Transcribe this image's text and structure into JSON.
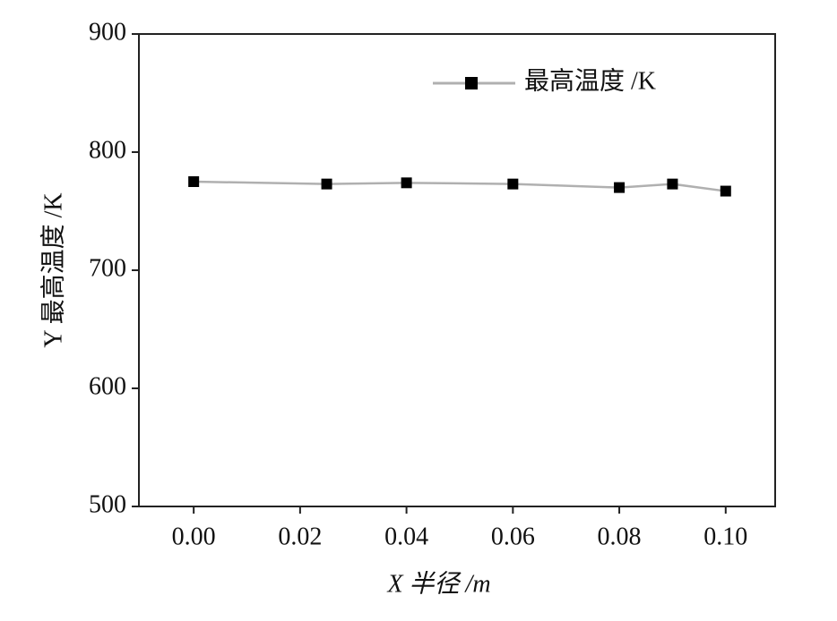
{
  "chart_data": {
    "type": "line",
    "x_label": "X 半径 /m",
    "y_label": "Y 最高温度 /K",
    "x": [
      0,
      0.025,
      0.04,
      0.06,
      0.08,
      0.09,
      0.1
    ],
    "series": [
      {
        "name": "最高温度 /K",
        "color": "#b0b0b0",
        "marker_color": "#000000",
        "values": [
          775,
          773,
          774,
          773,
          770,
          773,
          767
        ]
      }
    ],
    "xlim": [
      -0.0103,
      0.1093
    ],
    "xticks": [
      {
        "value": 0,
        "label": "0.00"
      },
      {
        "value": 0.02,
        "label": "0.02"
      },
      {
        "value": 0.04,
        "label": "0.04"
      },
      {
        "value": 0.06,
        "label": "0.06"
      },
      {
        "value": 0.08,
        "label": "0.08"
      },
      {
        "value": 0.1,
        "label": "0.10"
      }
    ],
    "ylim": [
      500,
      900
    ],
    "yticks": [
      500,
      600,
      700,
      800,
      900
    ],
    "legend": "top-right",
    "grid": false
  }
}
